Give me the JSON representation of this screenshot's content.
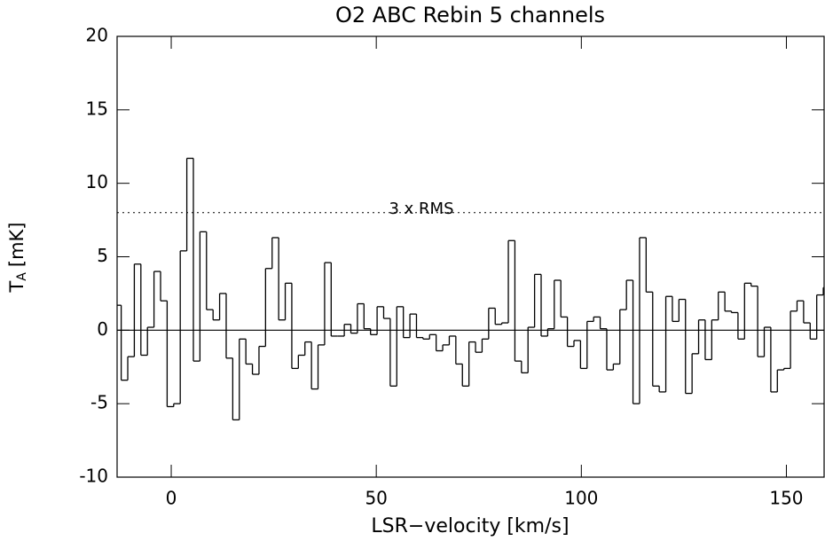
{
  "chart_data": {
    "type": "histogram",
    "title": "O2  ABC Rebin 5 channels",
    "xlabel": "LSR−velocity [km/s]",
    "ylabel": {
      "main": "T",
      "sub": "A",
      "unit": "[mK]"
    },
    "bins": [
      -13.8,
      -12.2,
      -10.6,
      -9,
      -7.4,
      -5.8,
      -4.2,
      -2.6,
      -1,
      0.6,
      2.2,
      3.8,
      5.4,
      7,
      8.6,
      10.2,
      11.8,
      13.4,
      15,
      16.6,
      18.2,
      19.8,
      21.4,
      23,
      24.6,
      26.2,
      27.8,
      29.4,
      31,
      32.6,
      34.2,
      35.8,
      37.4,
      39,
      40.6,
      42.2,
      43.8,
      45.4,
      47,
      48.6,
      50.2,
      51.8,
      53.4,
      55,
      56.6,
      58.2,
      59.8,
      61.4,
      63,
      64.6,
      66.2,
      67.8,
      69.4,
      71,
      72.6,
      74.2,
      75.8,
      77.4,
      79,
      80.6,
      82.2,
      83.8,
      85.4,
      87,
      88.6,
      90.2,
      91.8,
      93.4,
      95,
      96.6,
      98.2,
      99.8,
      101.4,
      103,
      104.6,
      106.2,
      107.8,
      109.4,
      111,
      112.6,
      114.2,
      115.8,
      117.4,
      119,
      120.6,
      122.2,
      123.8,
      125.4,
      127,
      128.6,
      130.2,
      131.8,
      133.4,
      135,
      136.6,
      138.2,
      139.8,
      141.4,
      143,
      144.6,
      146.2,
      147.8,
      149.4,
      151,
      152.6,
      154.2,
      155.8,
      157.4,
      159,
      160.6
    ],
    "values": [
      1.7,
      -3.4,
      -1.8,
      4.5,
      -1.7,
      0.2,
      4.0,
      2.0,
      -5.2,
      -5.0,
      5.4,
      11.7,
      -2.1,
      6.7,
      1.4,
      0.7,
      2.5,
      -1.9,
      -6.1,
      -0.6,
      -2.3,
      -3.0,
      -1.1,
      4.2,
      6.3,
      0.7,
      3.2,
      -2.6,
      -1.7,
      -0.8,
      -4.0,
      -1.0,
      4.6,
      -0.4,
      -0.4,
      0.4,
      -0.2,
      1.8,
      0.1,
      -0.3,
      1.6,
      0.8,
      -3.8,
      1.6,
      -0.5,
      1.1,
      -0.5,
      -0.6,
      -0.3,
      -1.4,
      -1.0,
      -0.4,
      -2.3,
      -3.8,
      -0.8,
      -1.5,
      -0.6,
      1.5,
      0.4,
      0.5,
      6.1,
      -2.1,
      -2.9,
      0.2,
      3.8,
      -0.4,
      0.1,
      3.4,
      0.9,
      -1.1,
      -0.7,
      -2.6,
      0.6,
      0.9,
      0.1,
      -2.7,
      -2.3,
      1.4,
      3.4,
      -5.0,
      6.3,
      2.6,
      -3.8,
      -4.2,
      2.3,
      0.6,
      2.1,
      -4.3,
      -1.6,
      0.7,
      -2.0,
      0.7,
      2.6,
      1.3,
      1.2,
      -0.6,
      3.2,
      3.0,
      -1.8,
      0.2,
      -4.2,
      -2.7,
      -2.6,
      1.3,
      2.0,
      0.5,
      -0.6,
      2.4,
      2.9
    ],
    "color": "#000000",
    "threshold": {
      "value": 8,
      "label": "3 x RMS"
    },
    "xlim": [
      -13.2,
      159.2
    ],
    "ylim": [
      -10,
      20
    ],
    "xticks": [
      0,
      50,
      100,
      150
    ],
    "yticks": [
      -10,
      -5,
      0,
      5,
      10,
      15,
      20
    ]
  }
}
